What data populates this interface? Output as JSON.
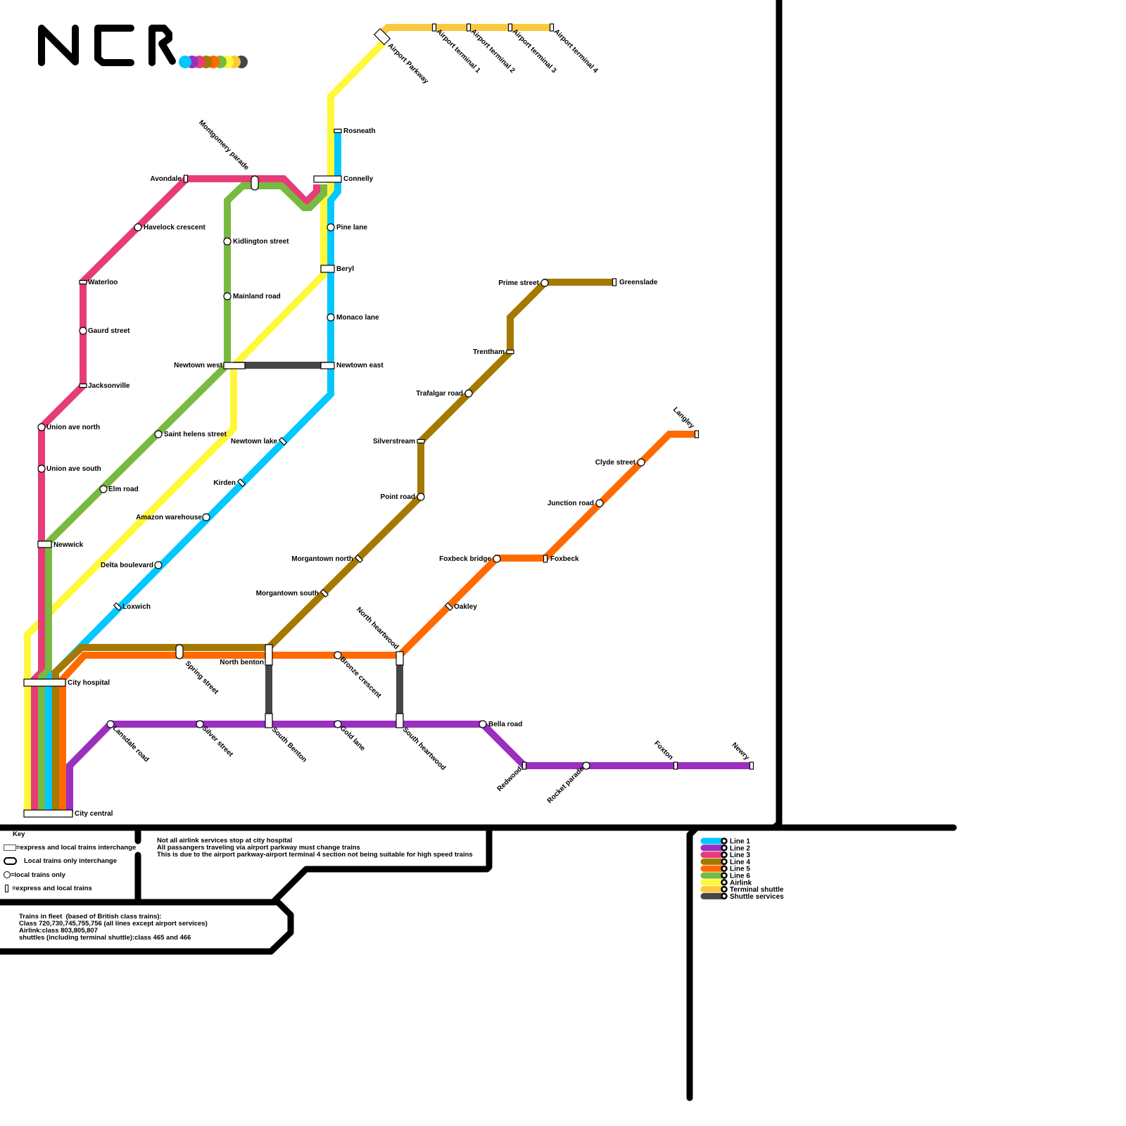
{
  "logo": {
    "text": "NCR"
  },
  "colors": {
    "line1": "#00c8ff",
    "line2": "#9b2fbe",
    "line3": "#e63c78",
    "line4": "#a57800",
    "line5": "#ff6a00",
    "line6": "#78b941",
    "airlink": "#fff83a",
    "terminal_shuttle": "#fcc83c",
    "shuttle": "#464646"
  },
  "legend": [
    {
      "label": "Line 1",
      "color": "#00c8ff"
    },
    {
      "label": "Line 2",
      "color": "#9b2fbe"
    },
    {
      "label": "Line 3",
      "color": "#e63c78"
    },
    {
      "label": "Line 4",
      "color": "#a57800"
    },
    {
      "label": "Line 5",
      "color": "#ff6a00"
    },
    {
      "label": "Line 6",
      "color": "#78b941"
    },
    {
      "label": "Airlink",
      "color": "#fff83a"
    },
    {
      "label": "Terminal shuttle",
      "color": "#fcc83c"
    },
    {
      "label": "Shuttle services",
      "color": "#464646"
    }
  ],
  "key": {
    "title": "Key",
    "interchange": "=express and local trains interchange",
    "local_interchange": "Local trains only interchange",
    "local": "=local trains only",
    "express": "=express and local trains"
  },
  "notes": {
    "airlink": "Not all airlink services stop at city hospital\nAll passangers traveling via airport parkway must change trains\nThis is due to the airport parkway-airport terminal 4 section not being suitable for high speed trains",
    "fleet": "Trains in fleet  (based of British class trains):\nClass 720,730,745,755,756 (all lines except airport services)\nAirlink:class 803,805,807\nshuttles (including terminal shuttle):class 465 and 466"
  },
  "stations": [
    "Airport Parkway",
    "Airport terminal 1",
    "Airport terminal 2",
    "Airport terminal 3",
    "Airport terminal 4",
    "Rosneath",
    "Connelly",
    "Montgomery parade",
    "Avondale",
    "Havelock crescent",
    "Kidlington street",
    "Pine lane",
    "Beryl",
    "Mainland road",
    "Monaco lane",
    "Waterloo",
    "Gaurd street",
    "Jacksonville",
    "Newtown west",
    "Newtown east",
    "Union ave north",
    "Union ave south",
    "Saint helens street",
    "Newtown lake",
    "Kirden",
    "Elm road",
    "Amazon warehouse",
    "Newwick",
    "Delta boulevard",
    "Loxwich",
    "City hospital",
    "City central",
    "Spring street",
    "North benton",
    "South Benton",
    "Bronze crescent",
    "North heartwood",
    "South heartwood",
    "Lansdale road",
    "Silver street",
    "Gold lane",
    "Bella road",
    "Redwood",
    "Rocket parade",
    "Foxton",
    "Newry",
    "Morgantown north",
    "Morgantown south",
    "Point road",
    "Silverstream",
    "Trafalgar road",
    "Trentham",
    "Prime street",
    "Greenslade",
    "Langley",
    "Clyde street",
    "Junction road",
    "Foxbeck bridge",
    "Foxbeck",
    "Oakley"
  ]
}
